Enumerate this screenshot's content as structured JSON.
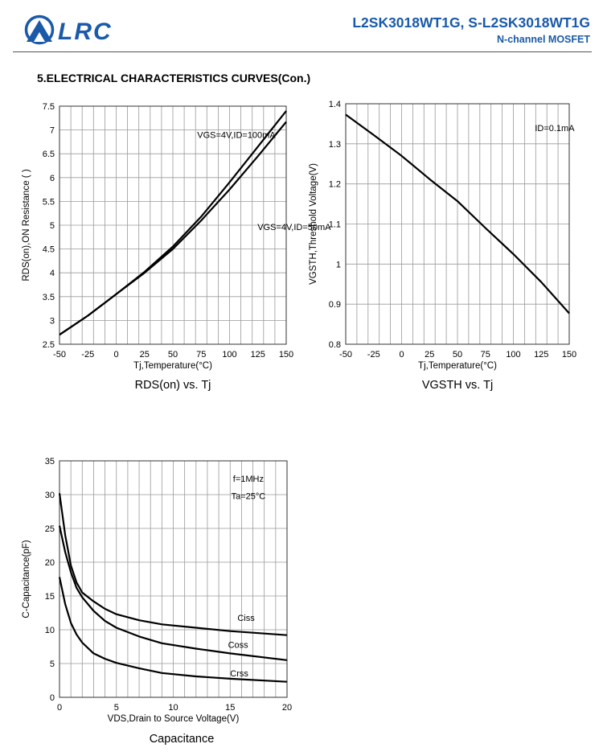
{
  "header": {
    "logo_text": "LRC",
    "part_number": "L2SK3018WT1G, S-L2SK3018WT1G",
    "part_type": "N-channel MOSFET",
    "colors": {
      "brand": "#1a5aa8"
    }
  },
  "section_title": "5.ELECTRICAL CHARACTERISTICS CURVES(Con.)",
  "chart_data": [
    {
      "type": "line",
      "title": "RDS(on) vs. Tj",
      "xlabel": "Tj,Temperature(°C)",
      "ylabel": "RDS(on),ON Resistance (   )",
      "xlim": [
        -50,
        150
      ],
      "ylim": [
        2.5,
        7.5
      ],
      "xticks": [
        -50,
        -25,
        0,
        25,
        50,
        75,
        100,
        125,
        150
      ],
      "yticks": [
        2.5,
        3,
        3.5,
        4,
        4.5,
        5,
        5.5,
        6,
        6.5,
        7,
        7.5
      ],
      "grid": true,
      "x": [
        -50,
        -25,
        0,
        25,
        50,
        75,
        100,
        125,
        150
      ],
      "series": [
        {
          "name": "VGS=4V,ID=100mA",
          "values": [
            2.7,
            3.1,
            3.55,
            4.02,
            4.55,
            5.18,
            5.9,
            6.65,
            7.4
          ]
        },
        {
          "name": "VGS=4V,ID=50mA",
          "values": [
            2.7,
            3.1,
            3.55,
            4.0,
            4.5,
            5.1,
            5.75,
            6.45,
            7.17
          ]
        }
      ],
      "annotations": [
        {
          "text": "VGS=4V,ID=100mA",
          "x": 106,
          "y": 6.9
        },
        {
          "text": "VGS=4V,ID=50mA",
          "x": 157,
          "y": 4.97
        }
      ]
    },
    {
      "type": "line",
      "title": "VGSTH vs. Tj",
      "xlabel": "Tj,Temperature(°C)",
      "ylabel": "VGSTH,Threshold Voltage(V)",
      "xlim": [
        -50,
        150
      ],
      "ylim": [
        0.8,
        1.4
      ],
      "xticks": [
        -50,
        -25,
        0,
        25,
        50,
        75,
        100,
        125,
        150
      ],
      "yticks": [
        0.8,
        0.9,
        1,
        1.1,
        1.2,
        1.3,
        1.4
      ],
      "grid": true,
      "x": [
        -50,
        -25,
        0,
        25,
        50,
        75,
        100,
        125,
        150
      ],
      "series": [
        {
          "name": "",
          "values": [
            1.373,
            1.322,
            1.27,
            1.212,
            1.157,
            1.09,
            1.025,
            0.955,
            0.877
          ]
        }
      ],
      "annotations": [
        {
          "text": "ID=0.1mA",
          "x": 137,
          "y": 1.34
        }
      ]
    },
    {
      "type": "line",
      "title": "Capacitance",
      "xlabel": "VDS,Drain to Source Voltage(V)",
      "ylabel": "C-Capacitance(pF)",
      "xlim": [
        0,
        20
      ],
      "ylim": [
        0,
        35
      ],
      "xticks": [
        0,
        5,
        10,
        15,
        20
      ],
      "yticks": [
        0,
        5,
        10,
        15,
        20,
        25,
        30,
        35
      ],
      "grid": true,
      "x": [
        0,
        0.5,
        1,
        1.5,
        2,
        3,
        4,
        5,
        7,
        9,
        12,
        15,
        20
      ],
      "series": [
        {
          "name": "Ciss",
          "values": [
            30.2,
            24,
            19.5,
            17,
            15.5,
            14.2,
            13.1,
            12.3,
            11.4,
            10.8,
            10.3,
            9.8,
            9.2
          ]
        },
        {
          "name": "Coss",
          "values": [
            25.4,
            21.5,
            18.5,
            16.2,
            14.8,
            12.8,
            11.3,
            10.3,
            9.0,
            8.0,
            7.2,
            6.5,
            5.5
          ]
        },
        {
          "name": "Crss",
          "values": [
            17.8,
            13.8,
            11.0,
            9.3,
            8.1,
            6.5,
            5.7,
            5.1,
            4.3,
            3.6,
            3.1,
            2.75,
            2.3
          ]
        }
      ],
      "annotations": [
        {
          "text": "f=1MHz",
          "x": 16.6,
          "y": 32.4
        },
        {
          "text": "Ta=25°C",
          "x": 16.6,
          "y": 29.8
        },
        {
          "text": "Ciss",
          "x": 16.4,
          "y": 11.8
        },
        {
          "text": "Coss",
          "x": 15.7,
          "y": 7.8
        },
        {
          "text": "Crss",
          "x": 15.8,
          "y": 3.6
        }
      ]
    }
  ]
}
